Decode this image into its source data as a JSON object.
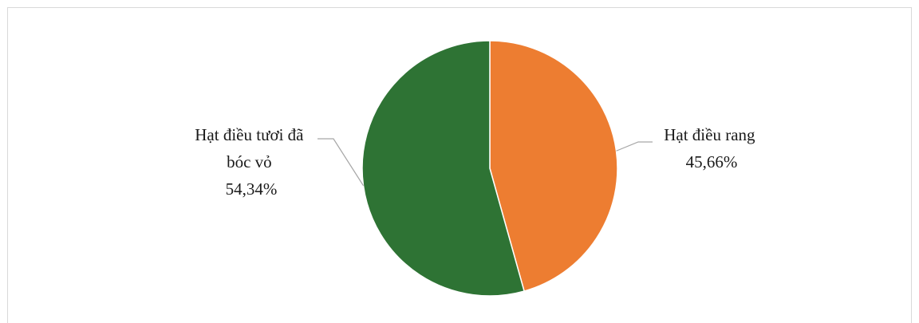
{
  "chart_data": {
    "type": "pie",
    "slices": [
      {
        "label_lines": [
          "Hạt điều rang"
        ],
        "value_label": "45,66%",
        "value": 45.66,
        "color": "#ed7d31"
      },
      {
        "label_lines": [
          "Hạt điều tươi đã",
          "bóc vỏ"
        ],
        "value_label": "54,34%",
        "value": 54.34,
        "color": "#2e7334"
      }
    ],
    "start_angle_deg": 0,
    "direction": "clockwise",
    "slice_border_color": "#ffffff",
    "leader_line_color": "#a6a6a6",
    "legend": "none"
  }
}
